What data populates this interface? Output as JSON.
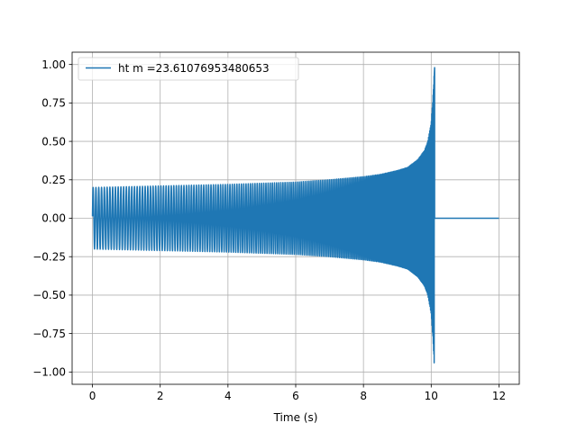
{
  "chart_data": {
    "type": "line",
    "xlabel": "Time (s)",
    "ylabel": "",
    "xlim": [
      -0.6,
      12.6
    ],
    "ylim": [
      -1.08,
      1.08
    ],
    "x_ticks": [
      0,
      2,
      4,
      6,
      8,
      10,
      12
    ],
    "x_tick_labels": [
      "0",
      "2",
      "4",
      "6",
      "8",
      "10",
      "12"
    ],
    "y_ticks": [
      -1.0,
      -0.75,
      -0.5,
      -0.25,
      0.0,
      0.25,
      0.5,
      0.75,
      1.0
    ],
    "y_tick_labels": [
      "−1.00",
      "−0.75",
      "−0.50",
      "−0.25",
      "0.00",
      "0.25",
      "0.50",
      "0.75",
      "1.00"
    ],
    "grid": true,
    "legend": {
      "position": "top-left"
    },
    "series": [
      {
        "name": "ht m =23.61076953480653",
        "color": "#1f77b4",
        "envelope": {
          "x": [
            0,
            2,
            4,
            6,
            7,
            8,
            8.5,
            9,
            9.3,
            9.6,
            9.8,
            9.9,
            10.0,
            10.05,
            10.1
          ],
          "amplitude": [
            0.2,
            0.21,
            0.22,
            0.235,
            0.25,
            0.27,
            0.285,
            0.31,
            0.33,
            0.38,
            0.44,
            0.5,
            0.62,
            0.78,
            1.0
          ]
        },
        "merger_time": 10.1,
        "zero_tail": {
          "x_start": 10.1,
          "x_end": 12,
          "value": 0.0
        }
      }
    ]
  }
}
